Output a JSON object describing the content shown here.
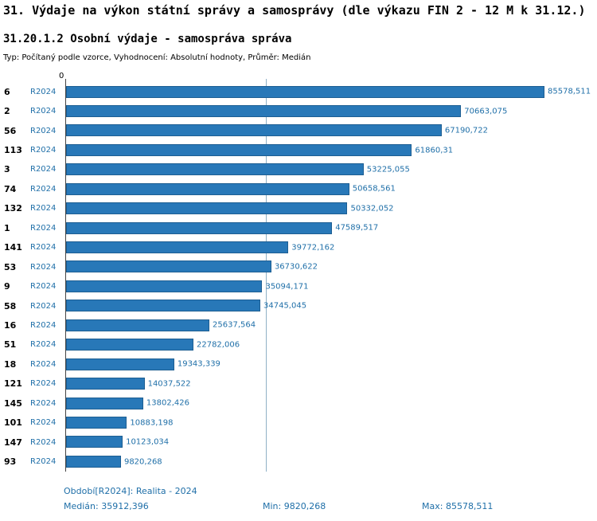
{
  "header": {
    "title": "31. Výdaje na výkon státní správy a samosprávy (dle výkazu FIN 2 - 12 M k 31.12.)",
    "subtitle": "31.20.1.2 Osobní výdaje - samospráva správa",
    "meta": "Typ: Počítaný podle vzorce, Vyhodnocení: Absolutní hodnoty, Průměr: Medián"
  },
  "chart_data": {
    "type": "bar",
    "orientation": "horizontal",
    "series_label": "R2024",
    "axis_zero_label": "0",
    "categories": [
      "6",
      "2",
      "56",
      "113",
      "3",
      "74",
      "132",
      "1",
      "141",
      "53",
      "9",
      "58",
      "16",
      "51",
      "18",
      "121",
      "145",
      "101",
      "147",
      "93"
    ],
    "values": [
      85578.511,
      70663.075,
      67190.722,
      61860.31,
      53225.055,
      50658.561,
      50332.052,
      47589.517,
      39772.162,
      36730.622,
      35094.171,
      34745.045,
      25637.564,
      22782.006,
      19343.339,
      14037.522,
      13802.426,
      10883.198,
      10123.034,
      9820.268
    ],
    "value_labels": [
      "85578,511",
      "70663,075",
      "67190,722",
      "61860,31",
      "53225,055",
      "50658,561",
      "50332,052",
      "47589,517",
      "39772,162",
      "36730,622",
      "35094,171",
      "34745,045",
      "25637,564",
      "22782,006",
      "19343,339",
      "14037,522",
      "13802,426",
      "10883,198",
      "10123,034",
      "9820,268"
    ],
    "xlim": [
      0,
      85578.511
    ],
    "median_value": 35912.396,
    "bar_color": "#2878b8",
    "median_line_on": true,
    "grid": "off",
    "legend": "none"
  },
  "footer": {
    "period": "Období[R2024]: Realita - 2024",
    "median": "Medián: 35912,396",
    "min": "Min: 9820,268",
    "max": "Max: 85578,511"
  }
}
